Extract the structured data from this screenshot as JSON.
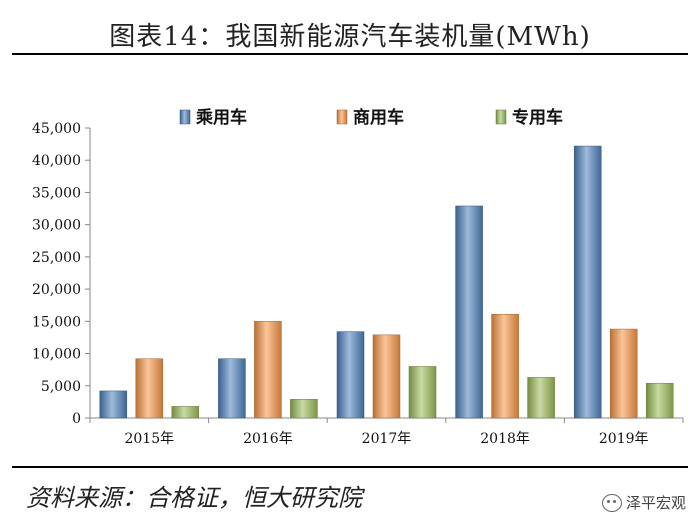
{
  "title": "图表14：我国新能源汽车装机量(MWh)",
  "source": "资料来源：合格证，恒大研究院",
  "watermark": "泽平宏观",
  "watermark_icon": "wechat-icon",
  "chart_data": {
    "type": "bar",
    "title": "图表14：我国新能源汽车装机量(MWh)",
    "xlabel": "",
    "ylabel": "",
    "ylim": [
      0,
      45000
    ],
    "ytick_step": 5000,
    "yticks": [
      "0",
      "5,000",
      "10,000",
      "15,000",
      "20,000",
      "25,000",
      "30,000",
      "35,000",
      "40,000",
      "45,000"
    ],
    "grid": false,
    "legend_position": "top-center",
    "categories": [
      "2015年",
      "2016年",
      "2017年",
      "2018年",
      "2019年"
    ],
    "series": [
      {
        "name": "乘用车",
        "color": "#4F81BD",
        "values": [
          4200,
          9200,
          13400,
          32900,
          42200
        ]
      },
      {
        "name": "商用车",
        "color": "#F79646",
        "values": [
          9200,
          15000,
          12900,
          16100,
          13800
        ]
      },
      {
        "name": "专用车",
        "color": "#9BBB59",
        "values": [
          1800,
          2900,
          8000,
          6300,
          5400
        ]
      }
    ]
  }
}
